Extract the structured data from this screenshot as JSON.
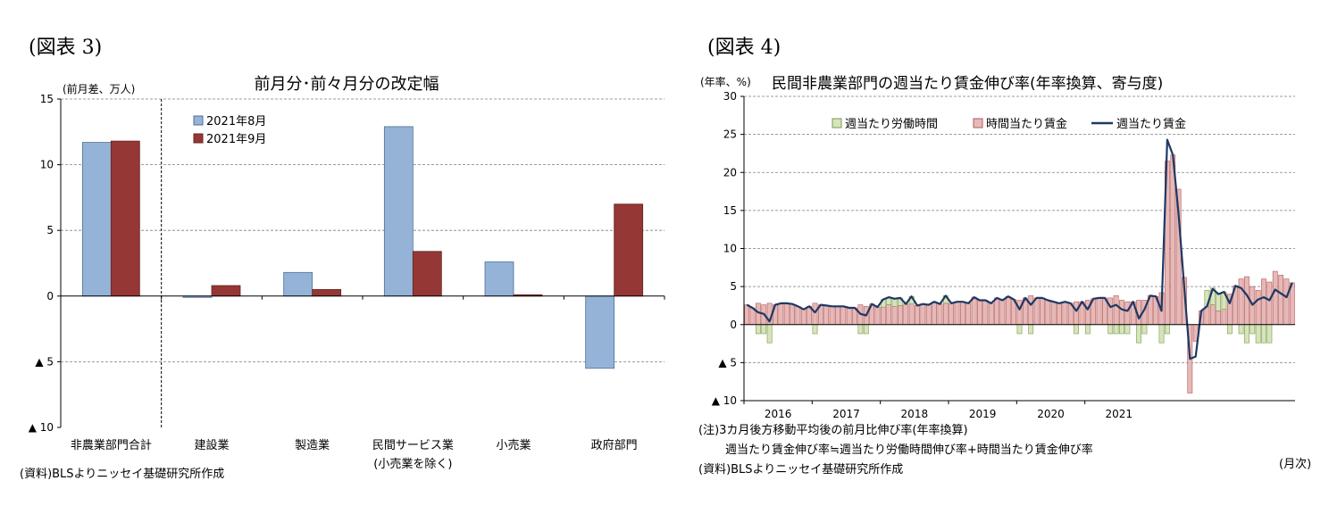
{
  "palette": {
    "blue_fill": "#95b3d7",
    "blue_stroke": "#4f6f9a",
    "red_fill": "#953735",
    "red_stroke": "#632523",
    "green_fill": "#d7e4bd",
    "green_stroke": "#7a9a4a",
    "pink_fill": "#e6b9b8",
    "pink_stroke": "#b25a58",
    "line": "#1f3864",
    "grid": "#7f7f7f"
  },
  "chart_data": [
    {
      "type": "bar",
      "figure_label": "(図表 3)",
      "title": "前月分･前々月分の改定幅",
      "ylabel": "(前月差、万人)",
      "ylim": [
        -10,
        15
      ],
      "yticks": [
        {
          "value": 15,
          "label": "15"
        },
        {
          "value": 10,
          "label": "10"
        },
        {
          "value": 5,
          "label": "5"
        },
        {
          "value": 0,
          "label": "0"
        },
        {
          "value": -5,
          "label": "▲ 5"
        },
        {
          "value": -10,
          "label": "▲ 10"
        }
      ],
      "categories": [
        "非農業部門合計",
        "建設業",
        "製造業",
        "民間サービス業",
        "小売業",
        "政府部門"
      ],
      "category_sublabels": [
        "",
        "",
        "",
        "(小売業を除く)",
        "",
        ""
      ],
      "series": [
        {
          "name": "2021年8月",
          "values": [
            11.7,
            -0.1,
            1.8,
            12.9,
            2.6,
            -5.5
          ]
        },
        {
          "name": "2021年9月",
          "values": [
            11.8,
            0.8,
            0.5,
            3.4,
            0.1,
            7.0
          ]
        }
      ],
      "grid": "dashed horizontal",
      "legend_position": "top-left",
      "source": "(資料)BLSよりニッセイ基礎研究所作成"
    },
    {
      "type": "bar",
      "figure_label": "(図表 4)",
      "title": "民間非農業部門の週当たり賃金伸び率(年率換算、寄与度)",
      "ylabel": "(年率、%)",
      "xlabel": "(月次)",
      "ylim": [
        -10,
        30
      ],
      "yticks": [
        {
          "value": 30,
          "label": "30"
        },
        {
          "value": 25,
          "label": "25"
        },
        {
          "value": 20,
          "label": "20"
        },
        {
          "value": 15,
          "label": "15"
        },
        {
          "value": 10,
          "label": "10"
        },
        {
          "value": 5,
          "label": "5"
        },
        {
          "value": 0,
          "label": "0"
        },
        {
          "value": -5,
          "label": "▲ 5"
        },
        {
          "value": -10,
          "label": "▲ 10"
        }
      ],
      "x_start": "2016-01",
      "year_labels": [
        "2016",
        "2017",
        "2018",
        "2019",
        "2020",
        "2021"
      ],
      "series": [
        {
          "name": "週当たり労働時間",
          "kind": "stacked-bar",
          "values": [
            0,
            0,
            -1.2,
            -1.2,
            -2.4,
            0,
            0,
            0,
            0,
            0,
            0,
            0,
            -1.2,
            0,
            0,
            0,
            0,
            0,
            0,
            0,
            -1.2,
            -1.2,
            0,
            0,
            1,
            1,
            1,
            1,
            0,
            1,
            0,
            0,
            0,
            0,
            0,
            1,
            0,
            0,
            0,
            0,
            0,
            0,
            0,
            0,
            0,
            0,
            0,
            0,
            -1.2,
            0,
            -1.2,
            0,
            0,
            0,
            0,
            0,
            0,
            0,
            -1.2,
            0,
            -1.2,
            0,
            0,
            0,
            -1.2,
            -1.2,
            -1.2,
            -1.2,
            0,
            -2.4,
            -1.2,
            0,
            0,
            -2.4,
            -1.2,
            0,
            0,
            0,
            0,
            0,
            0,
            2.1,
            2.2,
            2.3,
            2.3,
            -1.2,
            0,
            -1.2,
            -2.4,
            -1.2,
            -2.4,
            -2.4,
            -2.4,
            0,
            0,
            0
          ]
        },
        {
          "name": "時間当たり賃金",
          "kind": "stacked-bar",
          "values": [
            2.6,
            2.2,
            2.8,
            2.6,
            2.8,
            2.6,
            2.8,
            2.8,
            2.7,
            2.4,
            2,
            2.4,
            2.8,
            2.6,
            2.5,
            2.4,
            2.4,
            2.4,
            2.2,
            2.2,
            2.6,
            2.4,
            2.7,
            2.3,
            2.3,
            2.6,
            2.4,
            2.5,
            2.7,
            2.7,
            2.5,
            2.7,
            2.6,
            3,
            2.7,
            2.8,
            2.8,
            3,
            3,
            2.8,
            3.6,
            3.2,
            3.2,
            2.8,
            3.5,
            3.2,
            3.7,
            3.3,
            3.2,
            3.5,
            3.8,
            3.5,
            3.5,
            3.2,
            3,
            2.8,
            3,
            2.8,
            3,
            3,
            3.2,
            3.4,
            3.5,
            3.5,
            3.5,
            3.8,
            3.2,
            3,
            3,
            3.2,
            3.2,
            3.8,
            3.7,
            4.2,
            21.5,
            22.3,
            17.8,
            6.2,
            -9,
            -2.2,
            1.8,
            2.4,
            2.6,
            1.8,
            2,
            4,
            5.1,
            6,
            6.3,
            5,
            4.5,
            6,
            5.6,
            7,
            6.5,
            6,
            5.5
          ]
        },
        {
          "name": "週当たり賃金",
          "kind": "line",
          "values": [
            2.6,
            2.2,
            1.6,
            1.4,
            0.4,
            2.6,
            2.8,
            2.8,
            2.7,
            2.4,
            2,
            2.4,
            1.6,
            2.6,
            2.5,
            2.4,
            2.4,
            2.4,
            2.2,
            2.2,
            1.4,
            1.2,
            2.7,
            2.3,
            3.3,
            3.6,
            3.4,
            3.5,
            2.7,
            3.7,
            2.5,
            2.7,
            2.6,
            3,
            2.7,
            3.8,
            2.8,
            3,
            3,
            2.8,
            3.6,
            3.2,
            3.2,
            2.8,
            3.5,
            3.2,
            3.7,
            3.3,
            2,
            3.5,
            2.6,
            3.5,
            3.5,
            3.2,
            3,
            2.8,
            3,
            2.8,
            1.8,
            3,
            2,
            3.4,
            3.5,
            3.5,
            2.3,
            2.6,
            2,
            1.8,
            3,
            0.8,
            2,
            3.8,
            3.7,
            1.8,
            24.3,
            22.3,
            14.5,
            4.8,
            -4.5,
            -4.2,
            1.8,
            2.4,
            4.7,
            4,
            4.3,
            2.8,
            5.1,
            4.8,
            3.9,
            2.6,
            3.3,
            3.6,
            3.2,
            4.6,
            4.1,
            3.6,
            5.5
          ]
        }
      ],
      "grid": "dashed horizontal",
      "legend_position": "top",
      "notes": [
        "(注)3カ月後方移動平均後の前月比伸び率(年率換算)",
        "週当たり賃金伸び率≒週当たり労働時間伸び率+時間当たり賃金伸び率"
      ],
      "source": "(資料)BLSよりニッセイ基礎研究所作成"
    }
  ]
}
